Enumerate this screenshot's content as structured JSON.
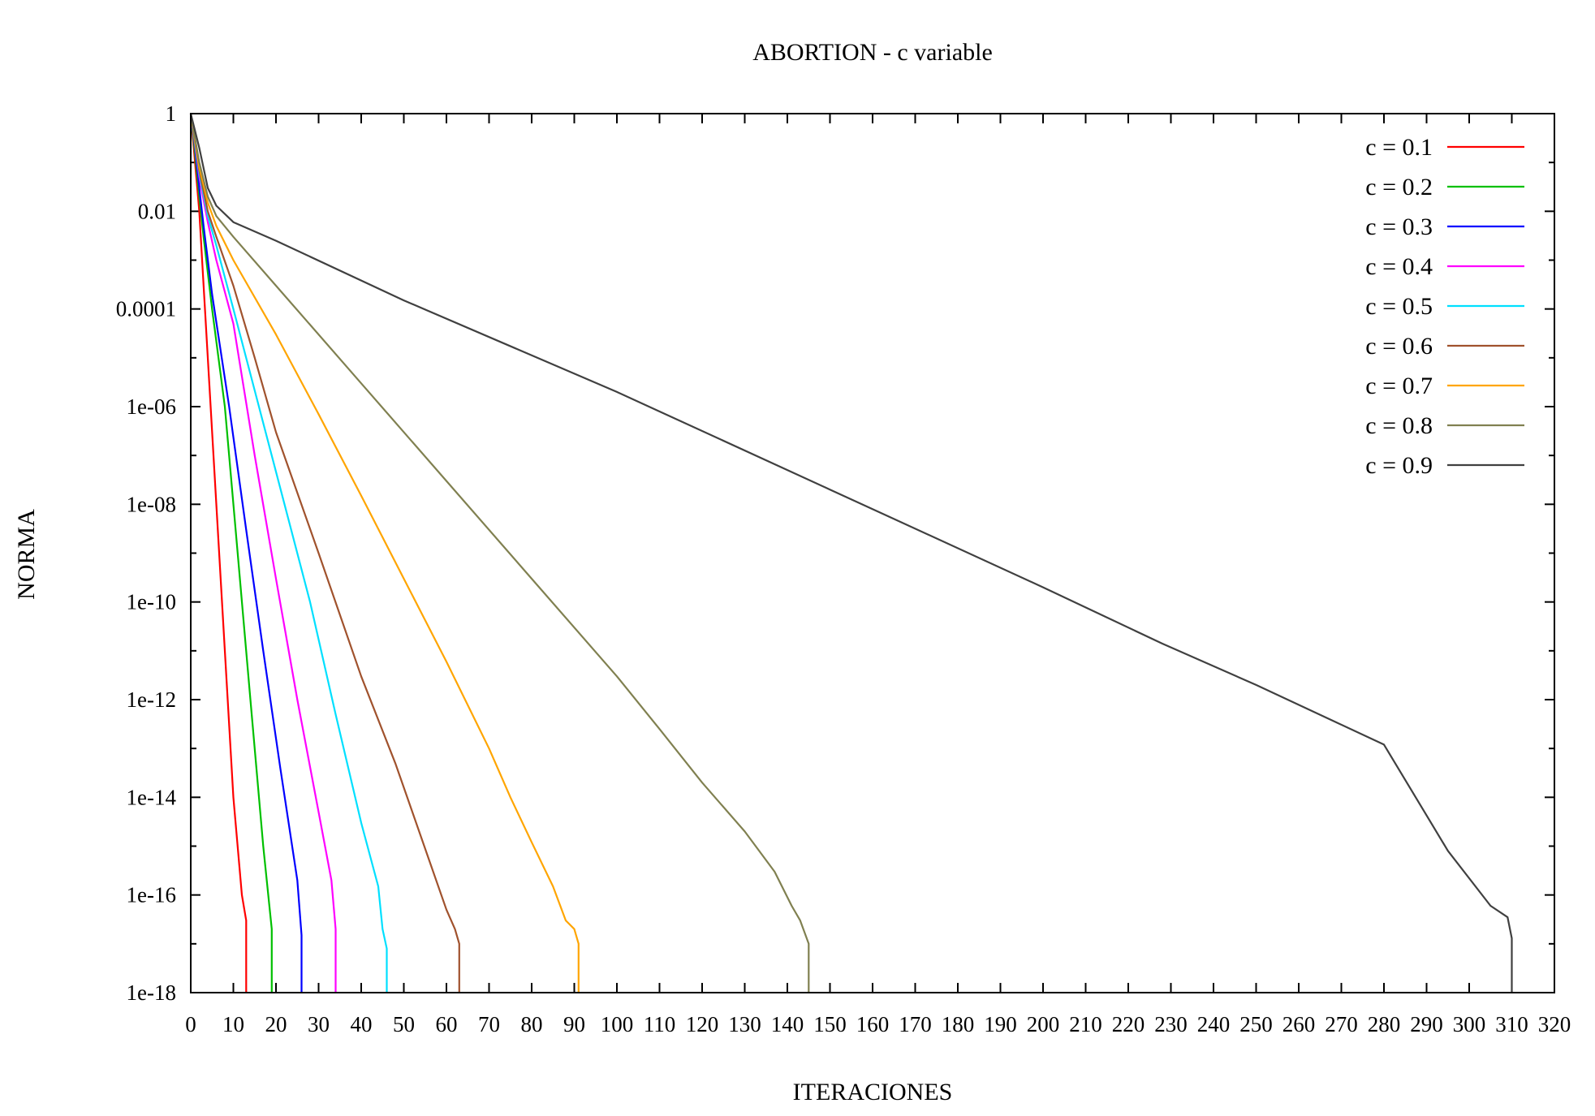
{
  "chart_data": {
    "type": "line",
    "title": "ABORTION - c variable",
    "xlabel": "ITERACIONES",
    "ylabel": "NORMA",
    "y_scale": "log",
    "xlim": [
      0,
      320
    ],
    "ylim": [
      1e-18,
      1
    ],
    "x_ticks": [
      0,
      10,
      20,
      30,
      40,
      50,
      60,
      70,
      80,
      90,
      100,
      110,
      120,
      130,
      140,
      150,
      160,
      170,
      180,
      190,
      200,
      210,
      220,
      230,
      240,
      250,
      260,
      270,
      280,
      290,
      300,
      310,
      320
    ],
    "x_tick_labels": [
      "0",
      "10",
      "20",
      "30",
      "40",
      "50",
      "60",
      "70",
      "80",
      "90",
      "100",
      "110",
      "120",
      "130",
      "140",
      "150",
      "160",
      "170",
      "180",
      "190",
      "200",
      "210",
      "220",
      "230",
      "240",
      "250",
      "260",
      "270",
      "280",
      "290",
      "300",
      "310",
      "320"
    ],
    "y_ticks": [
      1,
      0.01,
      0.0001,
      1e-06,
      1e-08,
      1e-10,
      1e-12,
      1e-14,
      1e-16,
      1e-18
    ],
    "y_tick_labels": [
      "1",
      "0.01",
      "0.0001",
      "1e-06",
      "1e-08",
      "1e-10",
      "1e-12",
      "1e-14",
      "1e-16",
      "1e-18"
    ],
    "grid": false,
    "legend_position": "top-right",
    "series": [
      {
        "name": "c = 0.1",
        "color": "#ff0000",
        "x": [
          0,
          1,
          2,
          4,
          6,
          8,
          10,
          12,
          13,
          13
        ],
        "y": [
          1,
          0.1,
          0.01,
          1e-05,
          1e-08,
          1e-11,
          1e-14,
          1e-16,
          3e-17,
          1e-18
        ]
      },
      {
        "name": "c = 0.2",
        "color": "#00c000",
        "x": [
          0,
          1,
          2,
          3,
          5,
          8,
          11,
          14,
          17,
          19,
          19
        ],
        "y": [
          1,
          0.15,
          0.02,
          0.003,
          0.0001,
          1e-06,
          1e-09,
          1e-12,
          1e-15,
          2e-17,
          1e-18
        ]
      },
      {
        "name": "c = 0.3",
        "color": "#0000ff",
        "x": [
          0,
          1,
          2,
          3,
          5,
          9,
          13,
          17,
          21,
          25,
          26,
          26
        ],
        "y": [
          1,
          0.2,
          0.03,
          0.005,
          0.0002,
          1e-06,
          3e-09,
          1e-11,
          4e-14,
          2e-16,
          1.5e-17,
          1e-18
        ]
      },
      {
        "name": "c = 0.4",
        "color": "#ff00ff",
        "x": [
          0,
          2,
          4,
          6,
          10,
          15,
          20,
          25,
          30,
          33,
          34,
          34
        ],
        "y": [
          1,
          0.05,
          0.006,
          0.001,
          5e-05,
          1e-07,
          3e-10,
          1e-12,
          5e-15,
          2e-16,
          2e-17,
          1e-18
        ]
      },
      {
        "name": "c = 0.5",
        "color": "#00e0ff",
        "x": [
          0,
          2,
          4,
          6,
          10,
          16,
          22,
          28,
          34,
          40,
          44,
          45,
          46,
          46
        ],
        "y": [
          1,
          0.06,
          0.008,
          0.002,
          0.0001,
          1e-06,
          1e-08,
          1e-10,
          5e-13,
          3e-15,
          1.5e-16,
          2e-17,
          8e-18,
          1e-18
        ]
      },
      {
        "name": "c = 0.6",
        "color": "#a0522d",
        "x": [
          0,
          2,
          4,
          6,
          10,
          15,
          20,
          30,
          40,
          48,
          52,
          56,
          60,
          62,
          63,
          63
        ],
        "y": [
          1,
          0.07,
          0.01,
          0.003,
          0.0003,
          1e-05,
          3e-07,
          1e-09,
          3e-12,
          5e-14,
          5e-15,
          5e-16,
          5e-17,
          2e-17,
          1e-17,
          1e-18
        ]
      },
      {
        "name": "c = 0.7",
        "color": "#ffa500",
        "x": [
          0,
          2,
          4,
          6,
          10,
          20,
          30,
          40,
          50,
          60,
          70,
          75,
          80,
          85,
          88,
          90,
          91,
          91
        ],
        "y": [
          1,
          0.08,
          0.015,
          0.005,
          0.001,
          3e-05,
          7e-07,
          1.5e-08,
          3e-10,
          6e-12,
          1e-13,
          1e-14,
          1.2e-15,
          1.5e-16,
          3e-17,
          2e-17,
          1e-17,
          1e-18
        ]
      },
      {
        "name": "c = 0.8",
        "color": "#808050",
        "x": [
          0,
          2,
          4,
          6,
          10,
          20,
          40,
          60,
          80,
          100,
          110,
          120,
          130,
          137,
          141,
          143,
          145,
          145
        ],
        "y": [
          1,
          0.1,
          0.02,
          0.008,
          0.003,
          0.0003,
          3e-06,
          3e-08,
          3e-10,
          3e-12,
          2.5e-13,
          2e-14,
          2e-15,
          3e-16,
          6e-17,
          3e-17,
          1e-17,
          1e-18
        ]
      },
      {
        "name": "c = 0.9",
        "color": "#404040",
        "x": [
          0,
          2,
          4,
          6,
          10,
          20,
          50,
          100,
          150,
          200,
          228,
          250,
          280,
          295,
          305,
          309,
          310,
          310
        ],
        "y": [
          1,
          0.2,
          0.03,
          0.013,
          0.006,
          0.0025,
          0.00015,
          2e-06,
          2e-08,
          2e-10,
          1.4e-11,
          2e-12,
          1.2e-13,
          8e-16,
          6e-17,
          3.5e-17,
          1.3e-17,
          1e-18
        ]
      }
    ]
  }
}
